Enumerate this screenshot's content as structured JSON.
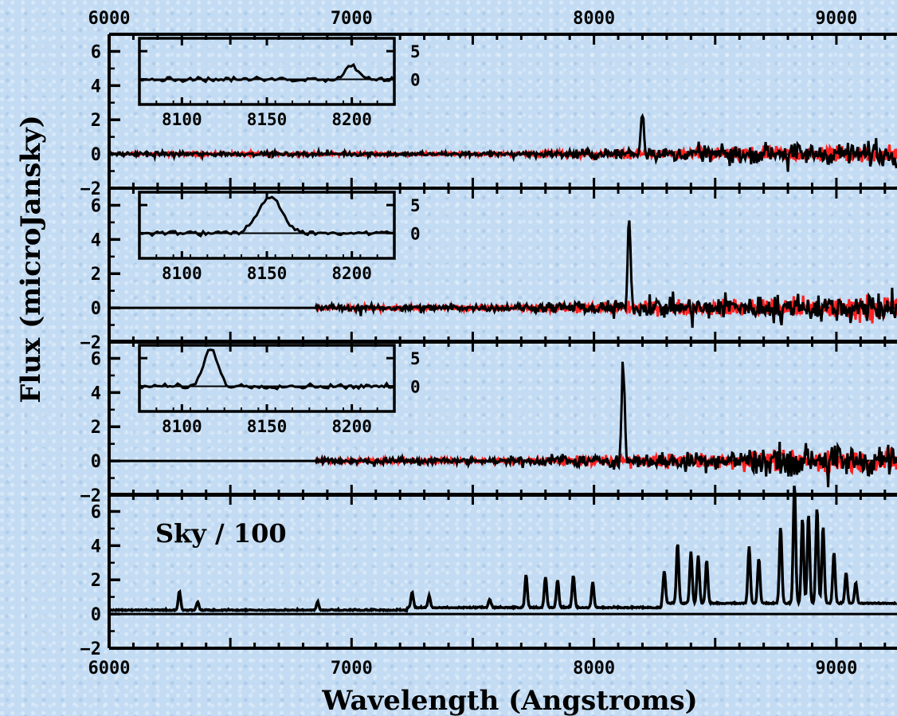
{
  "chart_data": {
    "type": "line",
    "xlabel": "Wavelength (Angstroms)",
    "ylabel": "Flux (microJansky)",
    "xlim": [
      6000,
      9250
    ],
    "x_ticks": [
      6000,
      7000,
      8000,
      9000
    ],
    "x_tick_labels": [
      "6000",
      "7000",
      "8000",
      "9000"
    ],
    "colors": {
      "spectrum": "#000000",
      "noise": "#ff2020",
      "frame": "#000000"
    },
    "panels": [
      {
        "id": "panel-1",
        "ylim": [
          -2,
          7
        ],
        "y_ticks": [
          -2,
          0,
          2,
          4,
          6
        ],
        "y_tick_labels": [
          "−2",
          "0",
          "2",
          "4",
          "6"
        ],
        "spectrum_start": 6000,
        "noise_amplitude": [
          0.1,
          0.6
        ],
        "emission_lines": [
          {
            "x": 8200,
            "flux": 2.5
          }
        ],
        "inset": {
          "xlim": [
            8075,
            8225
          ],
          "x_ticks": [
            8100,
            8150,
            8200
          ],
          "x_tick_labels": [
            "8100",
            "8150",
            "8200"
          ],
          "y_tick_labels": [
            "5",
            "0"
          ],
          "line_center": 8200,
          "line_peak": 2.5,
          "line_width": 4
        }
      },
      {
        "id": "panel-2",
        "ylim": [
          -2,
          7
        ],
        "y_ticks": [
          -2,
          0,
          2,
          4,
          6
        ],
        "y_tick_labels": [
          "−2",
          "0",
          "2",
          "4",
          "6"
        ],
        "spectrum_start": 6850,
        "noise_amplitude": [
          0.15,
          0.8
        ],
        "emission_lines": [
          {
            "x": 8145,
            "flux": 5.1
          }
        ],
        "inset": {
          "xlim": [
            8075,
            8225
          ],
          "x_ticks": [
            8100,
            8150,
            8200
          ],
          "x_tick_labels": [
            "8100",
            "8150",
            "8200"
          ],
          "y_tick_labels": [
            "5",
            "0"
          ],
          "line_center": 8152,
          "line_peak": 6.5,
          "line_width": 7
        }
      },
      {
        "id": "panel-3",
        "ylim": [
          -2,
          7
        ],
        "y_ticks": [
          -2,
          0,
          2,
          4,
          6
        ],
        "y_tick_labels": [
          "−2",
          "0",
          "2",
          "4",
          "6"
        ],
        "spectrum_start": 6850,
        "noise_amplitude": [
          0.15,
          0.8
        ],
        "emission_lines": [
          {
            "x": 8120,
            "flux": 5.8
          }
        ],
        "inset": {
          "xlim": [
            8075,
            8225
          ],
          "x_ticks": [
            8100,
            8150,
            8200
          ],
          "x_tick_labels": [
            "8100",
            "8150",
            "8200"
          ],
          "y_tick_labels": [
            "5",
            "0"
          ],
          "line_center": 8117,
          "line_peak": 6.8,
          "line_width": 4
        }
      },
      {
        "id": "panel-sky",
        "ylim": [
          -2,
          7
        ],
        "y_ticks": [
          -2,
          0,
          2,
          4,
          6
        ],
        "y_tick_labels": [
          "−2",
          "0",
          "2",
          "4",
          "6"
        ],
        "annotation": "Sky / 100",
        "sky_lines": [
          {
            "x": 6290,
            "flux": 1.1
          },
          {
            "x": 6365,
            "flux": 0.5
          },
          {
            "x": 6860,
            "flux": 0.5
          },
          {
            "x": 7250,
            "flux": 0.9
          },
          {
            "x": 7320,
            "flux": 0.7
          },
          {
            "x": 7570,
            "flux": 0.5
          },
          {
            "x": 7720,
            "flux": 1.9
          },
          {
            "x": 7800,
            "flux": 1.8
          },
          {
            "x": 7850,
            "flux": 1.6
          },
          {
            "x": 7915,
            "flux": 1.9
          },
          {
            "x": 7995,
            "flux": 1.5
          },
          {
            "x": 8290,
            "flux": 1.9
          },
          {
            "x": 8345,
            "flux": 3.5
          },
          {
            "x": 8400,
            "flux": 3.0
          },
          {
            "x": 8430,
            "flux": 2.8
          },
          {
            "x": 8465,
            "flux": 2.5
          },
          {
            "x": 8640,
            "flux": 3.3
          },
          {
            "x": 8680,
            "flux": 2.6
          },
          {
            "x": 8770,
            "flux": 4.5
          },
          {
            "x": 8827,
            "flux": 7.0
          },
          {
            "x": 8860,
            "flux": 5.0
          },
          {
            "x": 8885,
            "flux": 5.2
          },
          {
            "x": 8920,
            "flux": 5.6
          },
          {
            "x": 8945,
            "flux": 4.5
          },
          {
            "x": 8990,
            "flux": 3.0
          },
          {
            "x": 9040,
            "flux": 1.8
          },
          {
            "x": 9080,
            "flux": 1.2
          }
        ]
      }
    ]
  }
}
